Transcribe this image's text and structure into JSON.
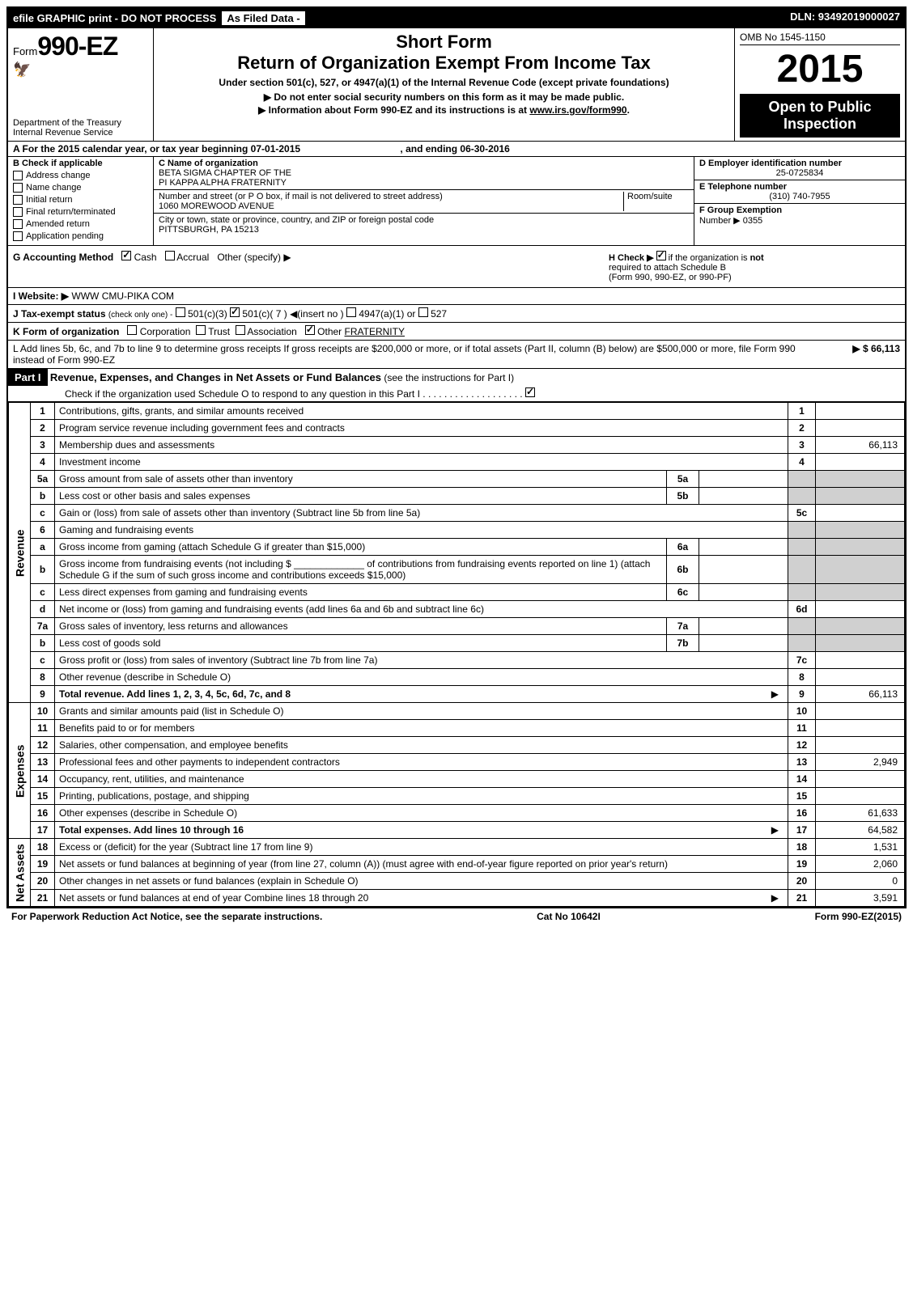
{
  "topbar": {
    "left": "efile GRAPHIC print - DO NOT PROCESS",
    "asfiled": "As Filed Data -",
    "dln": "DLN: 93492019000027"
  },
  "header": {
    "form_prefix": "Form",
    "form_number": "990-EZ",
    "dept1": "Department of the Treasury",
    "dept2": "Internal Revenue Service",
    "short_form": "Short Form",
    "title": "Return of Organization Exempt From Income Tax",
    "subtitle": "Under section 501(c), 527, or 4947(a)(1) of the Internal Revenue Code (except private foundations)",
    "instr1": "▶ Do not enter social security numbers on this form as it may be made public.",
    "instr2_pre": "▶ Information about Form 990-EZ and its instructions is at ",
    "instr2_link": "www.irs.gov/form990",
    "instr2_post": ".",
    "omb": "OMB No 1545-1150",
    "year": "2015",
    "open1": "Open to Public",
    "open2": "Inspection"
  },
  "lineA": {
    "text_pre": "A  For the 2015 calendar year, or tax year beginning ",
    "begin": "07-01-2015",
    "mid": ", and ending ",
    "end": "06-30-2016"
  },
  "sectionB": {
    "header": "B  Check if applicable",
    "items": [
      "Address change",
      "Name change",
      "Initial return",
      "Final return/terminated",
      "Amended return",
      "Application pending"
    ]
  },
  "sectionC": {
    "label": "C Name of organization",
    "name1": "BETA SIGMA CHAPTER OF THE",
    "name2": "PI KAPPA ALPHA FRATERNITY",
    "addr_label": "Number and street (or P O box, if mail is not delivered to street address)",
    "room_label": "Room/suite",
    "addr": "1060 MOREWOOD AVENUE",
    "city_label": "City or town, state or province, country, and ZIP or foreign postal code",
    "city": "PITTSBURGH, PA  15213"
  },
  "sectionD": {
    "label": "D Employer identification number",
    "ein": "25-0725834",
    "tel_label": "E Telephone number",
    "tel": "(310) 740-7955",
    "group_label": "F Group Exemption",
    "group_label2": "Number  ▶",
    "group": "0355"
  },
  "lineG": {
    "label": "G Accounting Method",
    "cash": "Cash",
    "accrual": "Accrual",
    "other": "Other (specify) ▶"
  },
  "lineH": {
    "text1": "H  Check ▶",
    "text2": "if the organization is",
    "text3": "not",
    "text4": "required to attach Schedule B",
    "text5": "(Form 990, 990-EZ, or 990-PF)"
  },
  "lineI": {
    "label": "I Website: ▶",
    "value": "WWW CMU-PIKA COM"
  },
  "lineJ": {
    "label": "J Tax-exempt status",
    "note": "(check only one) -",
    "opt1": "501(c)(3)",
    "opt2": "501(c)( 7 ) ◀(insert no )",
    "opt3": "4947(a)(1) or",
    "opt4": "527"
  },
  "lineK": {
    "label": "K Form of organization",
    "opts": [
      "Corporation",
      "Trust",
      "Association"
    ],
    "other_label": "Other",
    "other_val": "FRATERNITY"
  },
  "lineL": {
    "text": "L Add lines 5b, 6c, and 7b to line 9 to determine gross receipts  If gross receipts are $200,000 or more, or if total assets (Part II, column (B) below) are $500,000 or more, file Form 990 instead of Form 990-EZ",
    "amount": "▶ $ 66,113"
  },
  "part1": {
    "label": "Part I",
    "title": "Revenue, Expenses, and Changes in Net Assets or Fund Balances",
    "note": "(see the instructions for Part I)",
    "check_text": "Check if the organization used Schedule O to respond to any question in this Part I"
  },
  "sidebars": {
    "revenue": "Revenue",
    "expenses": "Expenses",
    "netassets": "Net Assets"
  },
  "rows": [
    {
      "n": "1",
      "desc": "Contributions, gifts, grants, and similar amounts received",
      "rn": "1",
      "rv": ""
    },
    {
      "n": "2",
      "desc": "Program service revenue including government fees and contracts",
      "rn": "2",
      "rv": ""
    },
    {
      "n": "3",
      "desc": "Membership dues and assessments",
      "rn": "3",
      "rv": "66,113"
    },
    {
      "n": "4",
      "desc": "Investment income",
      "rn": "4",
      "rv": ""
    },
    {
      "n": "5a",
      "desc": "Gross amount from sale of assets other than inventory",
      "mid": "5a",
      "mv": "",
      "shaded": true
    },
    {
      "n": "b",
      "desc": "Less  cost or other basis and sales expenses",
      "mid": "5b",
      "mv": "",
      "shaded": true
    },
    {
      "n": "c",
      "desc": "Gain or (loss) from sale of assets other than inventory (Subtract line 5b from line 5a)",
      "rn": "5c",
      "rv": ""
    },
    {
      "n": "6",
      "desc": "Gaming and fundraising events",
      "shaded_right": true
    },
    {
      "n": "a",
      "desc": "Gross income from gaming (attach Schedule G if greater than $15,000)",
      "mid": "6a",
      "mv": "",
      "shaded": true
    },
    {
      "n": "b",
      "desc": "Gross income from fundraising events (not including $ _____________ of contributions from fundraising events reported on line 1) (attach Schedule G if the sum of such gross income and contributions exceeds $15,000)",
      "mid": "6b",
      "mv": "",
      "shaded": true
    },
    {
      "n": "c",
      "desc": "Less  direct expenses from gaming and fundraising events",
      "mid": "6c",
      "mv": "",
      "shaded": true
    },
    {
      "n": "d",
      "desc": "Net income or (loss) from gaming and fundraising events (add lines 6a and 6b and subtract line 6c)",
      "rn": "6d",
      "rv": ""
    },
    {
      "n": "7a",
      "desc": "Gross sales of inventory, less returns and allowances",
      "mid": "7a",
      "mv": "",
      "shaded": true
    },
    {
      "n": "b",
      "desc": "Less  cost of goods sold",
      "mid": "7b",
      "mv": "",
      "shaded": true
    },
    {
      "n": "c",
      "desc": "Gross profit or (loss) from sales of inventory (Subtract line 7b from line 7a)",
      "rn": "7c",
      "rv": ""
    },
    {
      "n": "8",
      "desc": "Other revenue (describe in Schedule O)",
      "rn": "8",
      "rv": ""
    },
    {
      "n": "9",
      "desc": "Total revenue. Add lines 1, 2, 3, 4, 5c, 6d, 7c, and 8",
      "rn": "9",
      "rv": "66,113",
      "bold": true,
      "arrow": true
    },
    {
      "n": "10",
      "desc": "Grants and similar amounts paid (list in Schedule O)",
      "rn": "10",
      "rv": ""
    },
    {
      "n": "11",
      "desc": "Benefits paid to or for members",
      "rn": "11",
      "rv": ""
    },
    {
      "n": "12",
      "desc": "Salaries, other compensation, and employee benefits",
      "rn": "12",
      "rv": ""
    },
    {
      "n": "13",
      "desc": "Professional fees and other payments to independent contractors",
      "rn": "13",
      "rv": "2,949"
    },
    {
      "n": "14",
      "desc": "Occupancy, rent, utilities, and maintenance",
      "rn": "14",
      "rv": ""
    },
    {
      "n": "15",
      "desc": "Printing, publications, postage, and shipping",
      "rn": "15",
      "rv": ""
    },
    {
      "n": "16",
      "desc": "Other expenses (describe in Schedule O)",
      "rn": "16",
      "rv": "61,633"
    },
    {
      "n": "17",
      "desc": "Total expenses. Add lines 10 through 16",
      "rn": "17",
      "rv": "64,582",
      "bold": true,
      "arrow": true
    },
    {
      "n": "18",
      "desc": "Excess or (deficit) for the year (Subtract line 17 from line 9)",
      "rn": "18",
      "rv": "1,531"
    },
    {
      "n": "19",
      "desc": "Net assets or fund balances at beginning of year (from line 27, column (A)) (must agree with end-of-year figure reported on prior year's return)",
      "rn": "19",
      "rv": "2,060"
    },
    {
      "n": "20",
      "desc": "Other changes in net assets or fund balances (explain in Schedule O)",
      "rn": "20",
      "rv": "0"
    },
    {
      "n": "21",
      "desc": "Net assets or fund balances at end of year  Combine lines 18 through 20",
      "rn": "21",
      "rv": "3,591",
      "arrow": true
    }
  ],
  "footer": {
    "left": "For Paperwork Reduction Act Notice, see the separate instructions.",
    "mid": "Cat No 10642I",
    "right": "Form 990-EZ (2015)"
  },
  "colors": {
    "black": "#000000",
    "white": "#ffffff",
    "shade": "#d0d0d0"
  }
}
